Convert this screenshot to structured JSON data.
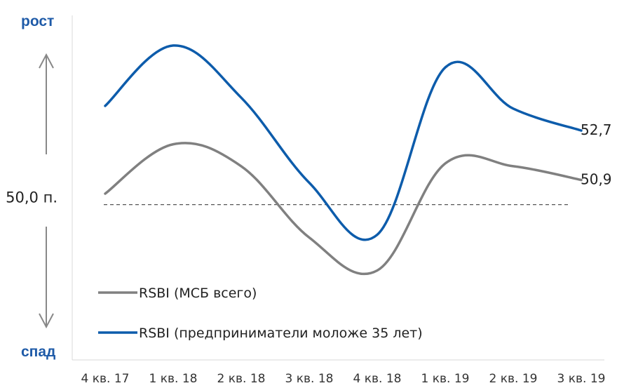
{
  "chart_data": {
    "type": "line",
    "categories": [
      "4 кв. 17",
      "1 кв. 18",
      "2 кв. 18",
      "3 кв. 18",
      "4 кв. 18",
      "1 кв. 19",
      "2 кв. 19",
      "3 кв. 19"
    ],
    "series": [
      {
        "name": "RSBI (МСБ всего)",
        "color": "#808080",
        "values": [
          50.4,
          52.2,
          51.4,
          48.8,
          47.6,
          51.5,
          51.4,
          50.9
        ],
        "end_label": "50,9"
      },
      {
        "name": "RSBI (предприниматели моложе 35 лет)",
        "color": "#0D5CAB",
        "values": [
          53.6,
          55.8,
          53.9,
          50.8,
          48.9,
          55.0,
          53.5,
          52.7
        ],
        "end_label": "52,7"
      }
    ],
    "baseline": {
      "value": 50.0,
      "label": "50,0 п."
    },
    "ylim": [
      46.0,
      57.0
    ],
    "top_label": "рост",
    "bottom_label": "спад",
    "axis_word_color": "#1F5BA8",
    "arrow_color": "#888888",
    "legend_position": "bottom-left",
    "grid": false
  }
}
